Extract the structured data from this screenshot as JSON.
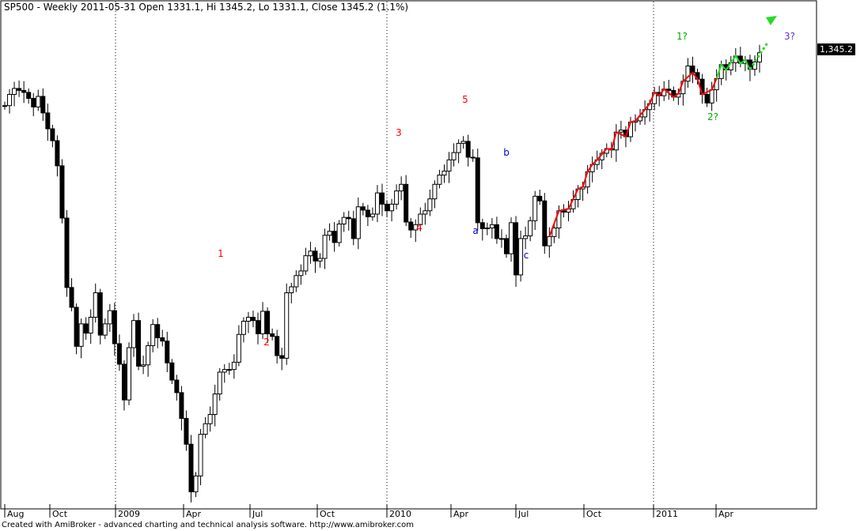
{
  "header": {
    "title": "SP500 - Weekly 2011-05-31 Open 1331.1, Hi 1345.2, Lo 1331.1, Close 1345.2 (1.1%)"
  },
  "footer": {
    "credit": "Created with AmiBroker - advanced charting and technical analysis software. http://www.amibroker.com"
  },
  "price_tag": {
    "value": "1,345.2"
  },
  "colors": {
    "impulse": "#ff0000",
    "correction": "#0000cc",
    "forecast": "#00aa00",
    "projection": "#6633cc",
    "red_path": "#ff0000",
    "green_path": "#22dd22"
  },
  "chart_data": {
    "type": "candlestick",
    "symbol": "SP500",
    "interval": "Weekly",
    "x_ticks": [
      "Aug",
      "Oct",
      "2009",
      "Apr",
      "Jul",
      "Oct",
      "2010",
      "Apr",
      "Jul",
      "Oct",
      "2011",
      "Apr"
    ],
    "ylim": [
      660,
      1365
    ],
    "grid": "vertical dotted at year boundaries",
    "last_bar": {
      "date": "2011-05-31",
      "open": 1331.1,
      "high": 1345.2,
      "low": 1331.1,
      "close": 1345.2,
      "change": "1.1%"
    },
    "close": [
      1265,
      1282,
      1291,
      1288,
      1285,
      1276,
      1263,
      1279,
      1254,
      1230,
      1212,
      1174,
      1095,
      990,
      960,
      901,
      935,
      921,
      945,
      982,
      918,
      935,
      955,
      905,
      874,
      820,
      899,
      940,
      871,
      873,
      902,
      934,
      914,
      909,
      876,
      850,
      831,
      792,
      753,
      681,
      705,
      768,
      784,
      798,
      829,
      862,
      866,
      866,
      877,
      919,
      939,
      945,
      940,
      920,
      954,
      920,
      916,
      887,
      883,
      982,
      991,
      1008,
      1015,
      1038,
      1045,
      1030,
      1034,
      1069,
      1075,
      1058,
      1086,
      1096,
      1094,
      1064,
      1112,
      1107,
      1097,
      1101,
      1133,
      1116,
      1106,
      1116,
      1136,
      1146,
      1089,
      1077,
      1085,
      1101,
      1106,
      1124,
      1146,
      1160,
      1166,
      1183,
      1194,
      1208,
      1211,
      1187,
      1186,
      1088,
      1079,
      1080,
      1085,
      1064,
      1064,
      1041,
      1088,
      1009,
      1064,
      1068,
      1091,
      1128,
      1121,
      1053,
      1067,
      1080,
      1106,
      1104,
      1109,
      1123,
      1139,
      1142,
      1165,
      1176,
      1183,
      1193,
      1200,
      1198,
      1225,
      1228,
      1218,
      1240,
      1242,
      1248,
      1259,
      1268,
      1285,
      1280,
      1290,
      1288,
      1278,
      1283,
      1302,
      1325,
      1315,
      1305,
      1282,
      1269,
      1289,
      1306,
      1327,
      1319,
      1330,
      1340,
      1329,
      1334,
      1320,
      1331,
      1345
    ],
    "labels": [
      {
        "text": "1",
        "series": "impulse"
      },
      {
        "text": "2",
        "series": "impulse"
      },
      {
        "text": "3",
        "series": "impulse"
      },
      {
        "text": "4",
        "series": "impulse"
      },
      {
        "text": "5",
        "series": "impulse"
      },
      {
        "text": "a",
        "series": "correction"
      },
      {
        "text": "b",
        "series": "correction"
      },
      {
        "text": "c",
        "series": "correction"
      },
      {
        "text": "1?",
        "series": "forecast"
      },
      {
        "text": "2?",
        "series": "forecast"
      },
      {
        "text": "3?",
        "series": "projection"
      }
    ]
  }
}
